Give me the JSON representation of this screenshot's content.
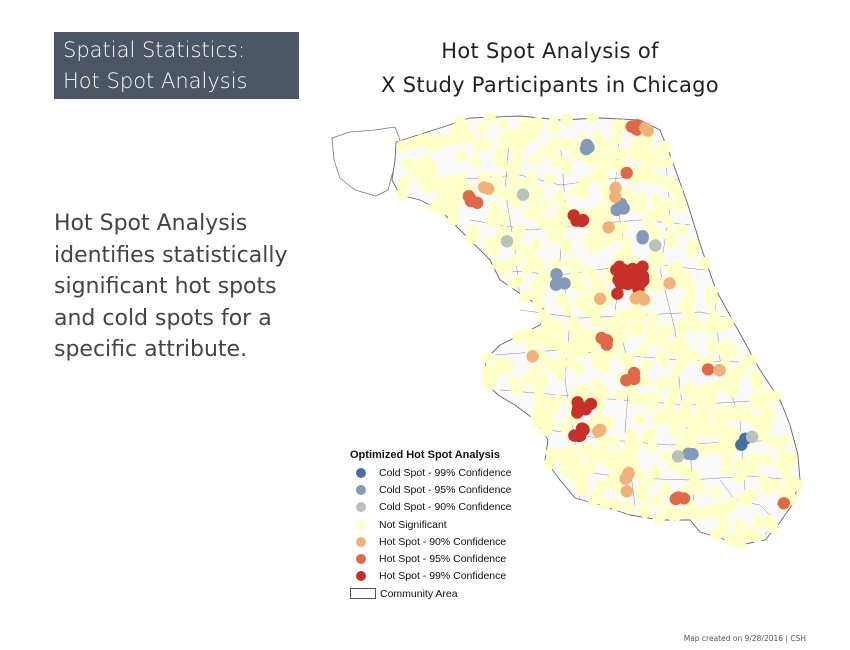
{
  "slide": {
    "heading_line1": "Spatial Statistics:",
    "heading_line2": "Hot Spot Analysis",
    "map_title_line1": "Hot Spot Analysis of",
    "map_title_line2": "X Study Participants in Chicago",
    "description_lines": [
      "Hot Spot Analysis",
      "identifies statistically",
      "significant hot spots",
      "and cold spots for a",
      "specific attribute."
    ],
    "footer": "Map created on 9/28/2016 | CSH"
  },
  "legend": {
    "title": "Optimized Hot Spot Analysis",
    "items": [
      {
        "label": "Cold Spot - 99% Confidence",
        "color": "#4a6fa5"
      },
      {
        "label": "Cold Spot - 95% Confidence",
        "color": "#8498b9"
      },
      {
        "label": "Cold Spot - 90% Confidence",
        "color": "#b7c2b8"
      },
      {
        "label": "Not Significant",
        "color": "#ffffc8"
      },
      {
        "label": "Hot Spot - 90% Confidence",
        "color": "#f0b27a"
      },
      {
        "label": "Hot Spot - 95% Confidence",
        "color": "#e0694a"
      },
      {
        "label": "Hot Spot - 99% Confidence",
        "color": "#c8302a"
      }
    ],
    "area_label": "Community Area"
  }
}
